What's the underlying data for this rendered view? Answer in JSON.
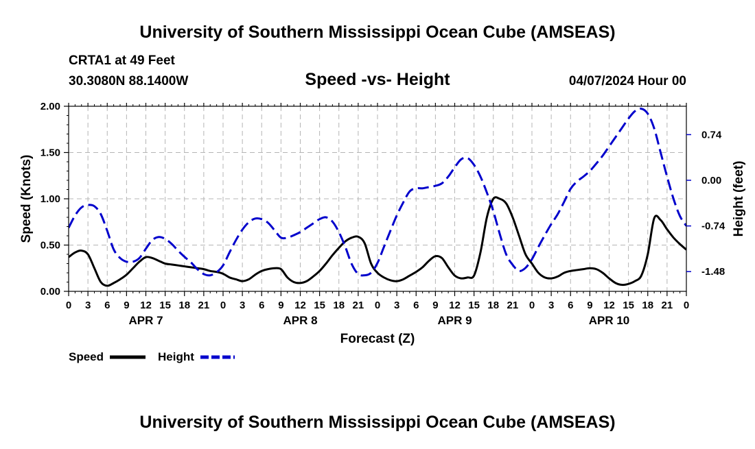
{
  "header": {
    "main_title": "University of Southern Mississippi Ocean Cube (AMSEAS)",
    "station": "CRTA1 at 49 Feet",
    "coords": "30.3080N  88.1400W",
    "chart_title": "Speed -vs- Height",
    "date": "04/07/2024 Hour 00"
  },
  "footer": {
    "main_title": "University of Southern Mississippi Ocean Cube (AMSEAS)"
  },
  "colors": {
    "speed": "#000000",
    "height": "#0000cc",
    "grid": "#b4b4b4"
  },
  "chart_data": {
    "type": "line",
    "title": "Speed -vs- Height",
    "xlabel": "Forecast (Z)",
    "ylabel_left": "Speed (Knots)",
    "ylabel_right": "Height (feet)",
    "xlim": [
      0,
      96
    ],
    "ylim_left": [
      0,
      2.0
    ],
    "ylim_right": [
      -1.8,
      1.2
    ],
    "y_left_ticks": [
      "0.00",
      "0.50",
      "1.00",
      "1.50",
      "2.00"
    ],
    "y_right_ticks": [
      "-1.48",
      "-0.74",
      "0.00",
      "0.74"
    ],
    "x_tick_labels": [
      "0",
      "3",
      "6",
      "9",
      "12",
      "15",
      "18",
      "21",
      "0",
      "3",
      "6",
      "9",
      "12",
      "15",
      "18",
      "21",
      "0",
      "3",
      "6",
      "9",
      "12",
      "15",
      "18",
      "21",
      "0",
      "3",
      "6",
      "9",
      "12",
      "15",
      "18",
      "21",
      "0"
    ],
    "day_labels": [
      {
        "label": "APR 7",
        "hour": 12
      },
      {
        "label": "APR 8",
        "hour": 36
      },
      {
        "label": "APR 9",
        "hour": 60
      },
      {
        "label": "APR 10",
        "hour": 84
      }
    ],
    "grid": true,
    "legend_position": "bottom-left",
    "series": [
      {
        "name": "Speed",
        "axis": "left",
        "style": "solid",
        "x": [
          0,
          1,
          2,
          3,
          4,
          5,
          6,
          7,
          8,
          9,
          10,
          11,
          12,
          13,
          14,
          15,
          16,
          17,
          18,
          19,
          20,
          21,
          22,
          23,
          24,
          25,
          26,
          27,
          28,
          29,
          30,
          31,
          32,
          33,
          34,
          35,
          36,
          37,
          38,
          39,
          40,
          41,
          42,
          43,
          44,
          45,
          46,
          47,
          48,
          49,
          50,
          51,
          52,
          53,
          54,
          55,
          56,
          57,
          58,
          59,
          60,
          61,
          62,
          63,
          64,
          65,
          66,
          67,
          68,
          69,
          70,
          71,
          72,
          73,
          74,
          75,
          76,
          77,
          78,
          79,
          80,
          81,
          82,
          83,
          84,
          85,
          86,
          87,
          88,
          89,
          90,
          91,
          92,
          93,
          94,
          95,
          96
        ],
        "values": [
          0.37,
          0.42,
          0.44,
          0.4,
          0.25,
          0.1,
          0.06,
          0.09,
          0.13,
          0.18,
          0.25,
          0.32,
          0.37,
          0.36,
          0.33,
          0.3,
          0.29,
          0.28,
          0.27,
          0.26,
          0.25,
          0.24,
          0.22,
          0.21,
          0.19,
          0.15,
          0.13,
          0.11,
          0.13,
          0.18,
          0.22,
          0.24,
          0.25,
          0.24,
          0.15,
          0.1,
          0.09,
          0.11,
          0.16,
          0.22,
          0.3,
          0.39,
          0.47,
          0.54,
          0.58,
          0.59,
          0.52,
          0.3,
          0.2,
          0.15,
          0.12,
          0.11,
          0.13,
          0.17,
          0.21,
          0.26,
          0.33,
          0.38,
          0.36,
          0.26,
          0.17,
          0.14,
          0.15,
          0.17,
          0.42,
          0.8,
          1.0,
          1.0,
          0.95,
          0.8,
          0.6,
          0.4,
          0.3,
          0.2,
          0.15,
          0.14,
          0.16,
          0.2,
          0.22,
          0.23,
          0.24,
          0.25,
          0.24,
          0.2,
          0.14,
          0.09,
          0.07,
          0.08,
          0.11,
          0.17,
          0.4,
          0.79,
          0.77,
          0.67,
          0.58,
          0.51,
          0.45
        ]
      },
      {
        "name": "Height",
        "axis": "right",
        "style": "dashed",
        "x": [
          0,
          1,
          2,
          3,
          4,
          5,
          6,
          7,
          8,
          9,
          10,
          11,
          12,
          13,
          14,
          15,
          16,
          17,
          18,
          19,
          20,
          21,
          22,
          23,
          24,
          25,
          26,
          27,
          28,
          29,
          30,
          31,
          32,
          33,
          34,
          35,
          36,
          37,
          38,
          39,
          40,
          41,
          42,
          43,
          44,
          45,
          46,
          47,
          48,
          49,
          50,
          51,
          52,
          53,
          54,
          55,
          56,
          57,
          58,
          59,
          60,
          61,
          62,
          63,
          64,
          65,
          66,
          67,
          68,
          69,
          70,
          71,
          72,
          73,
          74,
          75,
          76,
          77,
          78,
          79,
          80,
          81,
          82,
          83,
          84,
          85,
          86,
          87,
          88,
          89,
          90,
          91,
          92,
          93,
          94,
          95,
          96
        ],
        "values": [
          -0.77,
          -0.57,
          -0.44,
          -0.4,
          -0.42,
          -0.55,
          -0.82,
          -1.12,
          -1.26,
          -1.32,
          -1.32,
          -1.26,
          -1.11,
          -0.97,
          -0.92,
          -0.95,
          -1.03,
          -1.14,
          -1.24,
          -1.33,
          -1.44,
          -1.52,
          -1.54,
          -1.49,
          -1.38,
          -1.17,
          -0.97,
          -0.8,
          -0.68,
          -0.62,
          -0.63,
          -0.69,
          -0.81,
          -0.93,
          -0.93,
          -0.89,
          -0.84,
          -0.77,
          -0.7,
          -0.63,
          -0.6,
          -0.67,
          -0.84,
          -1.08,
          -1.36,
          -1.52,
          -1.54,
          -1.5,
          -1.34,
          -1.08,
          -0.82,
          -0.57,
          -0.36,
          -0.18,
          -0.13,
          -0.13,
          -0.11,
          -0.09,
          -0.05,
          0.06,
          0.21,
          0.34,
          0.36,
          0.25,
          0.06,
          -0.2,
          -0.5,
          -0.87,
          -1.2,
          -1.37,
          -1.47,
          -1.42,
          -1.28,
          -1.08,
          -0.89,
          -0.71,
          -0.55,
          -0.35,
          -0.14,
          -0.02,
          0.06,
          0.15,
          0.27,
          0.4,
          0.55,
          0.7,
          0.85,
          1.0,
          1.12,
          1.16,
          1.08,
          0.84,
          0.45,
          0.06,
          -0.3,
          -0.58,
          -0.74
        ]
      }
    ]
  }
}
